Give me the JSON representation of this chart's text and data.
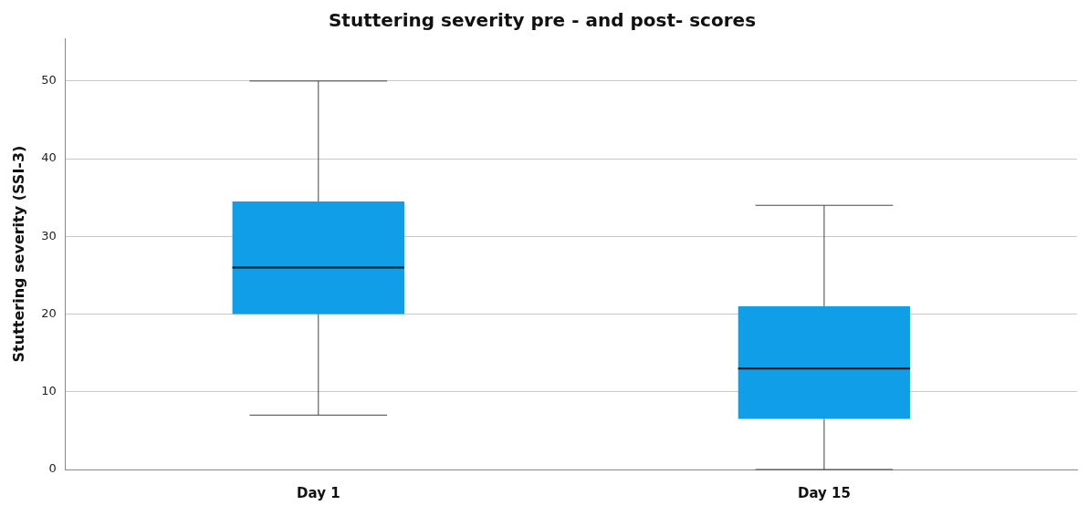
{
  "chart_data": {
    "type": "box",
    "title": "Stuttering severity pre - and post- scores",
    "ylabel": "Stuttering severity (SSI-3)",
    "categories": [
      "Day 1",
      "Day 15"
    ],
    "series": [
      {
        "color": "#109ee8",
        "boxes": [
          {
            "low": 7,
            "q1": 20,
            "median": 26,
            "q3": 34.5,
            "high": 50
          },
          {
            "low": 0,
            "q1": 6.5,
            "median": 13,
            "q3": 21,
            "high": 34
          }
        ]
      }
    ],
    "ylim": [
      0,
      55.5
    ],
    "yticks": [
      0,
      10,
      20,
      30,
      40,
      50
    ],
    "grid": "y"
  }
}
